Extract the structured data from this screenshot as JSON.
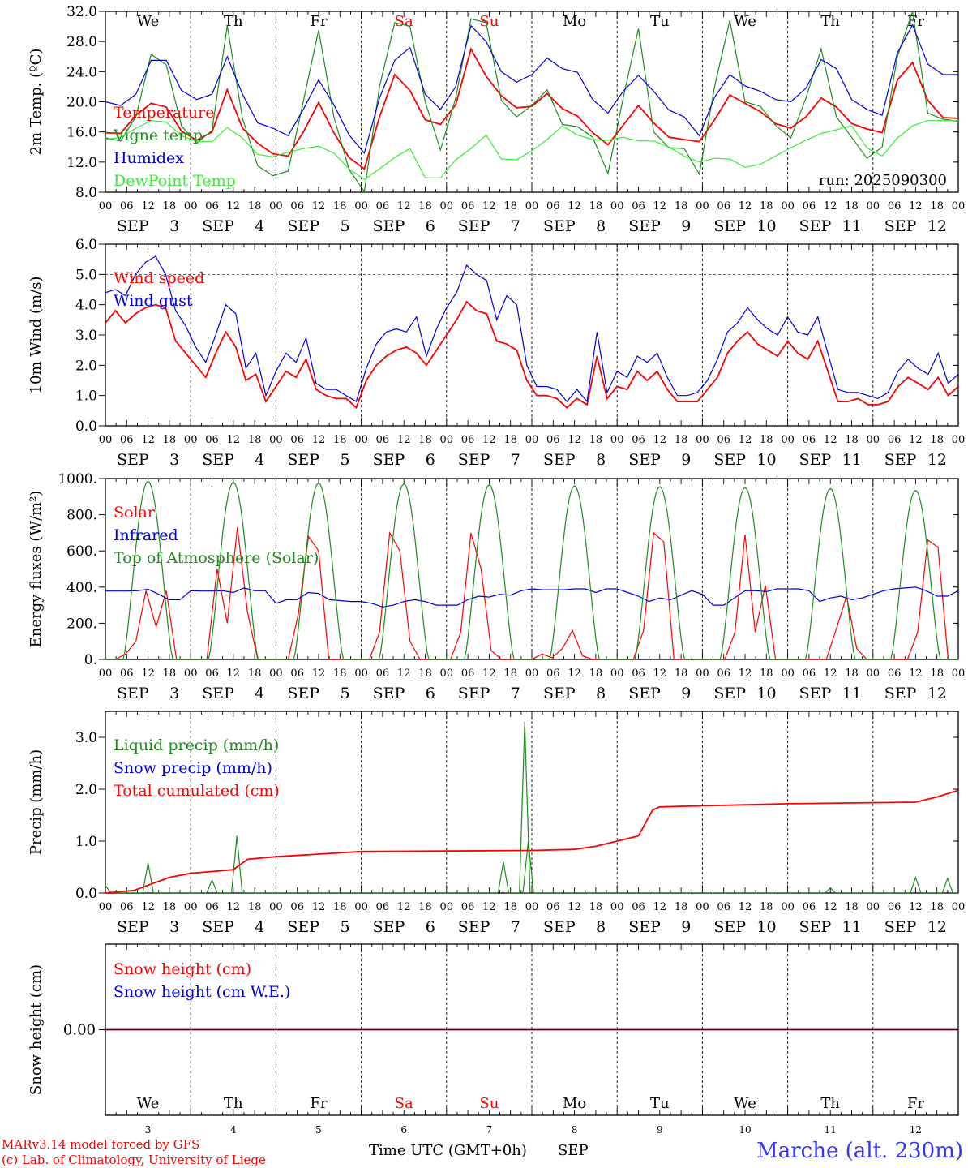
{
  "run_label": "run: 2025090300",
  "days": [
    {
      "abbr": "We",
      "num": "3",
      "weekend": false
    },
    {
      "abbr": "Th",
      "num": "4",
      "weekend": false
    },
    {
      "abbr": "Fr",
      "num": "5",
      "weekend": false
    },
    {
      "abbr": "Sa",
      "num": "6",
      "weekend": true
    },
    {
      "abbr": "Su",
      "num": "7",
      "weekend": true
    },
    {
      "abbr": "Mo",
      "num": "8",
      "weekend": false
    },
    {
      "abbr": "Tu",
      "num": "9",
      "weekend": false
    },
    {
      "abbr": "We",
      "num": "10",
      "weekend": false
    },
    {
      "abbr": "Th",
      "num": "11",
      "weekend": false
    },
    {
      "abbr": "Fr",
      "num": "12",
      "weekend": false
    }
  ],
  "month": "SEP",
  "hour_labels": [
    "00",
    "06",
    "12",
    "18"
  ],
  "footer": {
    "model": "MARv3.14 model forced by GFS",
    "copyright": "(c) Lab. of Climatology, University of Liege",
    "time_axis": "Time UTC (GMT+0h)",
    "month_label": "SEP",
    "station": "Marche (alt. 230m)"
  },
  "colors": {
    "red": "#ff0000",
    "green": "#1e8c1e",
    "blue": "#0000dd",
    "light_green": "#33ee33",
    "weekend": "#ff0000"
  },
  "chart_data": [
    {
      "type": "line",
      "ylabel": "2m Temp. (ºC)",
      "ylim": [
        8,
        32
      ],
      "yticks": [
        "8.0",
        "12.0",
        "16.0",
        "20.0",
        "24.0",
        "28.0",
        "32.0"
      ],
      "grid": false,
      "legend_position": "top-left",
      "series": [
        {
          "name": "Temperature",
          "color": "#ff0000",
          "values": [
            15.9,
            15.8,
            18.2,
            19.8,
            19.3,
            16.1,
            14.9,
            16.0,
            21.6,
            16.5,
            14.5,
            13.1,
            12.8,
            16.0,
            19.9,
            15.9,
            12.6,
            11.1,
            18.0,
            23.6,
            21.5,
            17.6,
            17.0,
            19.6,
            27.0,
            23.4,
            20.8,
            19.2,
            19.4,
            21.1,
            19.1,
            18.1,
            15.9,
            14.3,
            16.9,
            19.5,
            17.2,
            15.3,
            15.0,
            14.7,
            17.6,
            20.9,
            19.8,
            18.7,
            17.1,
            16.5,
            18.0,
            20.5,
            19.3,
            17.1,
            16.4,
            15.9,
            22.9,
            25.2,
            20.2,
            17.9,
            17.8
          ]
        },
        {
          "name": "Vigne temp",
          "color": "#1e8c1e",
          "values": [
            15.2,
            14.8,
            18.0,
            26.3,
            24.9,
            16.8,
            14.5,
            16.2,
            30.1,
            17.8,
            11.5,
            10.2,
            10.8,
            20.1,
            29.5,
            18.0,
            11.0,
            8.1,
            22.0,
            30.5,
            30.0,
            20.0,
            13.6,
            20.5,
            31.0,
            30.5,
            20.2,
            18.0,
            19.5,
            21.6,
            17.0,
            16.7,
            15.3,
            10.5,
            20.5,
            29.7,
            16.0,
            13.9,
            13.8,
            10.4,
            22.0,
            30.8,
            20.0,
            19.4,
            16.9,
            15.2,
            20.5,
            27.0,
            18.0,
            15.3,
            12.5,
            14.0,
            26.0,
            32.0,
            18.5,
            17.7,
            17.4
          ]
        },
        {
          "name": "Humidex",
          "color": "#0000dd",
          "values": [
            20.0,
            19.5,
            21.0,
            25.5,
            25.5,
            21.5,
            20.3,
            21.0,
            26.0,
            21.0,
            17.2,
            16.5,
            15.5,
            19.0,
            22.9,
            19.6,
            15.6,
            13.2,
            20.5,
            25.5,
            27.2,
            21.0,
            19.0,
            22.0,
            30.1,
            28.0,
            24.0,
            22.6,
            23.6,
            25.8,
            24.4,
            23.9,
            20.3,
            18.5,
            21.4,
            23.5,
            21.4,
            18.9,
            18.0,
            15.5,
            20.6,
            23.6,
            22.1,
            21.4,
            20.3,
            20.0,
            21.8,
            25.6,
            24.4,
            20.3,
            19.0,
            18.2,
            26.5,
            30.2,
            25.0,
            23.6,
            23.6
          ]
        },
        {
          "name": "DewPoint Temp",
          "color": "#33ee33",
          "values": [
            15.0,
            15.3,
            16.5,
            17.5,
            17.3,
            15.5,
            14.7,
            14.7,
            16.6,
            15.2,
            13.0,
            12.7,
            13.3,
            13.8,
            14.1,
            13.2,
            11.1,
            9.7,
            11.1,
            12.6,
            13.8,
            9.9,
            9.9,
            12.3,
            13.8,
            15.6,
            12.4,
            12.3,
            13.5,
            15.0,
            16.8,
            15.6,
            15.0,
            14.9,
            15.3,
            14.8,
            14.8,
            14.0,
            12.8,
            12.0,
            12.5,
            12.4,
            11.3,
            11.7,
            12.8,
            13.9,
            14.9,
            15.8,
            16.3,
            16.8,
            13.9,
            12.8,
            15.2,
            16.8,
            17.5,
            17.5,
            17.5
          ]
        }
      ]
    },
    {
      "type": "line",
      "ylabel": "10m Wind (m/s)",
      "ylim": [
        0,
        6
      ],
      "yticks": [
        "0.0",
        "1.0",
        "2.0",
        "3.0",
        "4.0",
        "5.0",
        "6.0"
      ],
      "reference_line": 5.0,
      "legend_position": "top-left",
      "series": [
        {
          "name": "Wind speed",
          "color": "#ff0000",
          "values": [
            3.4,
            3.8,
            3.4,
            3.7,
            3.9,
            4.0,
            3.9,
            2.8,
            2.4,
            2.0,
            1.6,
            2.4,
            3.1,
            2.6,
            1.5,
            1.7,
            0.8,
            1.3,
            1.8,
            1.6,
            2.2,
            1.2,
            1.0,
            0.9,
            0.9,
            0.6,
            1.5,
            2.0,
            2.3,
            2.5,
            2.6,
            2.4,
            2.0,
            2.5,
            3.0,
            3.5,
            4.1,
            3.8,
            3.7,
            2.8,
            2.7,
            2.5,
            1.5,
            1.0,
            1.0,
            0.9,
            0.6,
            0.9,
            0.7,
            2.3,
            0.9,
            1.3,
            1.2,
            1.8,
            1.5,
            1.8,
            1.2,
            0.8,
            0.8,
            0.8,
            1.2,
            1.6,
            2.4,
            2.8,
            3.1,
            2.7,
            2.5,
            2.3,
            2.8,
            2.4,
            2.2,
            2.8,
            1.8,
            0.8,
            0.8,
            0.9,
            0.7,
            0.7,
            0.8,
            1.3,
            1.6,
            1.4,
            1.2,
            1.6,
            1.0,
            1.3
          ]
        },
        {
          "name": "Wind gust",
          "color": "#0000dd",
          "values": [
            4.4,
            4.5,
            4.3,
            5.0,
            5.4,
            5.6,
            5.0,
            3.8,
            3.3,
            2.6,
            2.1,
            3.0,
            4.0,
            3.7,
            1.9,
            2.4,
            1.0,
            1.8,
            2.4,
            2.1,
            2.9,
            1.4,
            1.2,
            1.2,
            1.0,
            0.8,
            1.9,
            2.7,
            3.1,
            3.2,
            3.1,
            3.6,
            2.3,
            3.2,
            3.9,
            4.4,
            5.3,
            5.0,
            4.8,
            3.5,
            4.3,
            4.0,
            2.0,
            1.3,
            1.3,
            1.2,
            0.8,
            1.2,
            0.8,
            3.1,
            1.1,
            1.8,
            1.6,
            2.3,
            2.1,
            2.4,
            1.6,
            1.0,
            1.0,
            1.1,
            1.5,
            2.2,
            3.1,
            3.4,
            3.9,
            3.5,
            3.2,
            3.0,
            3.6,
            3.1,
            3.0,
            3.6,
            2.4,
            1.2,
            1.1,
            1.1,
            1.0,
            0.9,
            1.1,
            1.8,
            2.2,
            1.9,
            1.7,
            2.4,
            1.4,
            1.7
          ]
        }
      ]
    },
    {
      "type": "line",
      "ylabel": "Energy fluxes (W/m²)",
      "ylim": [
        0,
        1000
      ],
      "yticks": [
        "0.",
        "200.",
        "400.",
        "600.",
        "800.",
        "1000."
      ],
      "legend_position": "top-left",
      "series": [
        {
          "name": "Solar",
          "color": "#ff0000",
          "values": [
            0,
            0,
            30,
            100,
            380,
            180,
            380,
            0,
            0,
            0,
            0,
            500,
            200,
            730,
            260,
            0,
            0,
            0,
            0,
            250,
            680,
            600,
            0,
            0,
            0,
            0,
            0,
            150,
            700,
            600,
            100,
            0,
            0,
            0,
            0,
            150,
            700,
            500,
            50,
            0,
            0,
            0,
            0,
            30,
            10,
            60,
            160,
            20,
            0,
            0,
            0,
            0,
            0,
            160,
            700,
            650,
            0,
            0,
            0,
            0,
            0,
            0,
            150,
            690,
            150,
            410,
            0,
            0,
            0,
            0,
            0,
            0,
            170,
            350,
            60,
            0,
            0,
            0,
            0,
            0,
            150,
            660,
            620,
            0,
            0
          ]
        },
        {
          "name": "Infrared",
          "color": "#0000dd",
          "values": [
            378,
            378,
            378,
            380,
            388,
            360,
            330,
            330,
            380,
            378,
            378,
            380,
            370,
            395,
            380,
            380,
            310,
            330,
            330,
            370,
            365,
            330,
            325,
            320,
            320,
            310,
            290,
            300,
            320,
            330,
            320,
            300,
            300,
            300,
            330,
            350,
            345,
            360,
            355,
            380,
            390,
            385,
            385,
            385,
            390,
            390,
            370,
            390,
            390,
            370,
            350,
            320,
            340,
            330,
            355,
            380,
            360,
            300,
            300,
            340,
            380,
            380,
            375,
            390,
            390,
            390,
            380,
            320,
            340,
            350,
            330,
            340,
            360,
            380,
            390,
            395,
            400,
            380,
            350,
            350,
            380
          ]
        },
        {
          "name": "Top of Atmosphere (Solar)",
          "color": "#1e8c1e",
          "daily_peaks": [
            985,
            980,
            975,
            970,
            965,
            960,
            955,
            950,
            945,
            935
          ]
        }
      ]
    },
    {
      "type": "line",
      "ylabel": "Precip (mm/h)",
      "ylim": [
        0,
        3.5
      ],
      "yticks": [
        "0.0",
        "1.0",
        "2.0",
        "3.0"
      ],
      "legend_position": "top-left",
      "series": [
        {
          "name": "Liquid precip (mm/h)",
          "color": "#1e8c1e",
          "spikes": [
            [
              0,
              0.15
            ],
            [
              12,
              0.58
            ],
            [
              30,
              0.25
            ],
            [
              37,
              1.1
            ],
            [
              112,
              0.6
            ],
            [
              118,
              3.3
            ],
            [
              119,
              1.0
            ],
            [
              204,
              0.1
            ],
            [
              228,
              0.3
            ],
            [
              237,
              0.28
            ]
          ]
        },
        {
          "name": "Snow precip (mm/h)",
          "color": "#0000dd",
          "values": [
            0
          ]
        },
        {
          "name": "Total cumulated (cm)",
          "color": "#ff0000",
          "points": [
            [
              0,
              0
            ],
            [
              8,
              0.05
            ],
            [
              18,
              0.3
            ],
            [
              24,
              0.38
            ],
            [
              36,
              0.45
            ],
            [
              40,
              0.65
            ],
            [
              48,
              0.7
            ],
            [
              72,
              0.8
            ],
            [
              96,
              0.81
            ],
            [
              120,
              0.82
            ],
            [
              132,
              0.84
            ],
            [
              138,
              0.9
            ],
            [
              144,
              1.0
            ],
            [
              150,
              1.1
            ],
            [
              154,
              1.6
            ],
            [
              156,
              1.66
            ],
            [
              168,
              1.68
            ],
            [
              192,
              1.72
            ],
            [
              216,
              1.74
            ],
            [
              228,
              1.75
            ],
            [
              234,
              1.85
            ],
            [
              240,
              1.98
            ]
          ]
        }
      ]
    },
    {
      "type": "line",
      "ylabel": "Snow height (cm)",
      "ylim": [
        -1,
        1
      ],
      "yticks": [
        "0.00"
      ],
      "legend_position": "top-left",
      "series": [
        {
          "name": "Snow height (cm)",
          "color": "#ff0000",
          "values": [
            0,
            0
          ]
        },
        {
          "name": "Snow height (cm W.E.)",
          "color": "#0000dd",
          "values": [
            0,
            0
          ]
        }
      ]
    }
  ]
}
